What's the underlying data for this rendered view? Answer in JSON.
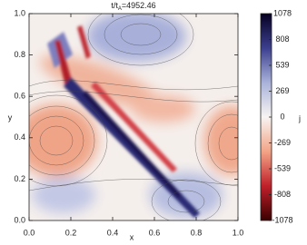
{
  "chart_data": {
    "type": "heatmap",
    "title": [
      "t/t",
      "A",
      "=4952.46"
    ],
    "xlabel": "x",
    "ylabel": "y",
    "xlim": [
      0,
      1
    ],
    "ylim": [
      0,
      1
    ],
    "xticks": [
      {
        "value": 0,
        "label": "0.0"
      },
      {
        "value": 0.2,
        "label": "0.2"
      },
      {
        "value": 0.4,
        "label": "0.4"
      },
      {
        "value": 0.6,
        "label": "0.6"
      },
      {
        "value": 0.8,
        "label": "0.8"
      },
      {
        "value": 1,
        "label": "1.0"
      }
    ],
    "yticks": [
      {
        "value": 0,
        "label": "0.0"
      },
      {
        "value": 0.2,
        "label": "0.2"
      },
      {
        "value": 0.4,
        "label": "0.4"
      },
      {
        "value": 0.6,
        "label": "0.6"
      },
      {
        "value": 0.8,
        "label": "0.8"
      },
      {
        "value": 1,
        "label": "1.0"
      }
    ],
    "colorbar_label": "j",
    "colorbar_lim": [
      -1078,
      1078
    ],
    "colorbar_ticks": [
      1078,
      808,
      539,
      269,
      0,
      -269,
      -539,
      -808,
      -1078
    ],
    "colormap": [
      "#3a0000",
      "#c0202a",
      "#f2a486",
      "#f7f4f2",
      "#a9b2da",
      "#3c3f8e",
      "#050022"
    ]
  }
}
